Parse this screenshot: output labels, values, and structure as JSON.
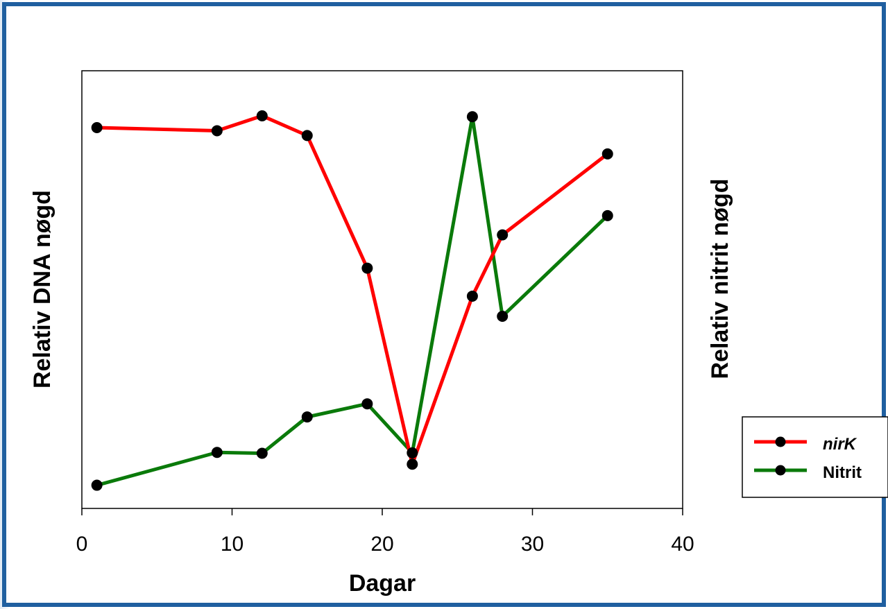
{
  "chart_data": {
    "type": "line",
    "xlabel": "Dagar",
    "ylabel_left": "Relativ DNA nøgd",
    "ylabel_right": "Relativ nitrit nøgd",
    "xlim": [
      0,
      40
    ],
    "x_ticks": [
      0,
      10,
      20,
      30,
      40
    ],
    "y_ticks_shown": false,
    "ylim": [
      0,
      1
    ],
    "grid": false,
    "legend_position": "outside-right-bottom",
    "series": [
      {
        "name": "nirK",
        "name_italic": true,
        "color": "#ff0000",
        "marker_color": "#000000",
        "x": [
          1,
          9,
          12,
          15,
          19,
          22,
          26,
          28,
          35
        ],
        "y": [
          0.87,
          0.863,
          0.897,
          0.852,
          0.549,
          0.101,
          0.485,
          0.625,
          0.81
        ]
      },
      {
        "name": "Nitrit",
        "name_italic": false,
        "color": "#0a7a0a",
        "marker_color": "#000000",
        "x": [
          1,
          9,
          12,
          15,
          19,
          22,
          26,
          28,
          35
        ],
        "y": [
          0.053,
          0.128,
          0.126,
          0.209,
          0.239,
          0.127,
          0.895,
          0.439,
          0.669
        ]
      }
    ]
  },
  "colors": {
    "frame_border": "#1f5fa0",
    "background": "#ffffff",
    "axis": "#000000"
  }
}
